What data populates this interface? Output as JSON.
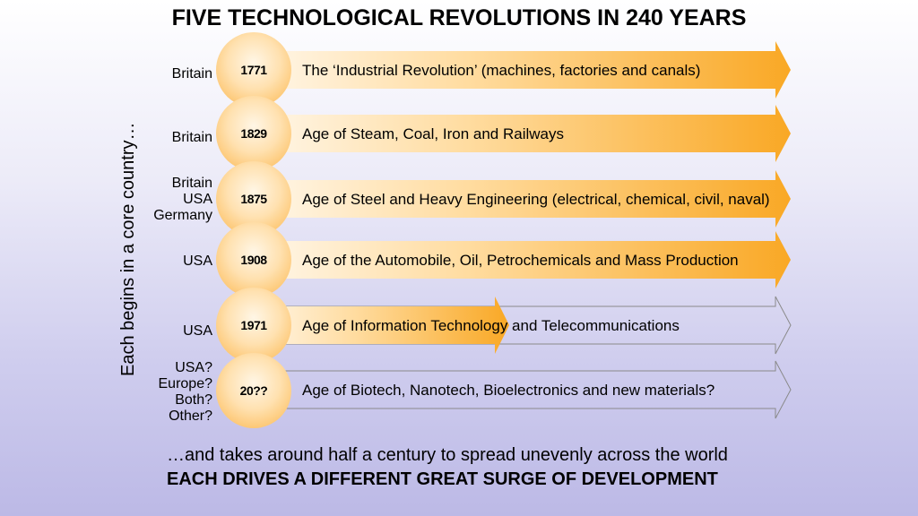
{
  "title": "FIVE TECHNOLOGICAL REVOLUTIONS IN 240 YEARS",
  "side_label": "Each begins in a core country…",
  "revolutions": [
    {
      "countries": [
        "Britain"
      ],
      "year": "1771",
      "description": "The ‘Industrial Revolution’ (machines, factories and canals)",
      "arrow": "full"
    },
    {
      "countries": [
        "Britain"
      ],
      "year": "1829",
      "description": "Age of Steam, Coal, Iron and Railways",
      "arrow": "full"
    },
    {
      "countries": [
        "Britain",
        "USA",
        "Germany"
      ],
      "year": "1875",
      "description": "Age of Steel and Heavy Engineering (electrical, chemical, civil, naval)",
      "arrow": "full"
    },
    {
      "countries": [
        "USA"
      ],
      "year": "1908",
      "description": "Age of the Automobile, Oil, Petrochemicals and Mass Production",
      "arrow": "full"
    },
    {
      "countries": [
        "USA"
      ],
      "year": "1971",
      "description": "Age of Information Technology and Telecommunications",
      "arrow": "partial"
    },
    {
      "countries": [
        "USA?",
        "Europe?",
        "Both?",
        "Other?"
      ],
      "year": "20??",
      "description": "Age of Biotech, Nanotech, Bioelectronics and new materials?",
      "arrow": "outline"
    }
  ],
  "footer": {
    "line1": "…and takes around half a century to spread unevenly across the world",
    "line2": "EACH DRIVES A DIFFERENT GREAT SURGE OF DEVELOPMENT"
  },
  "colors": {
    "arrow_orange": "#f9a825",
    "arrow_light": "#fff4e0",
    "outline": "#8a8a8a"
  }
}
